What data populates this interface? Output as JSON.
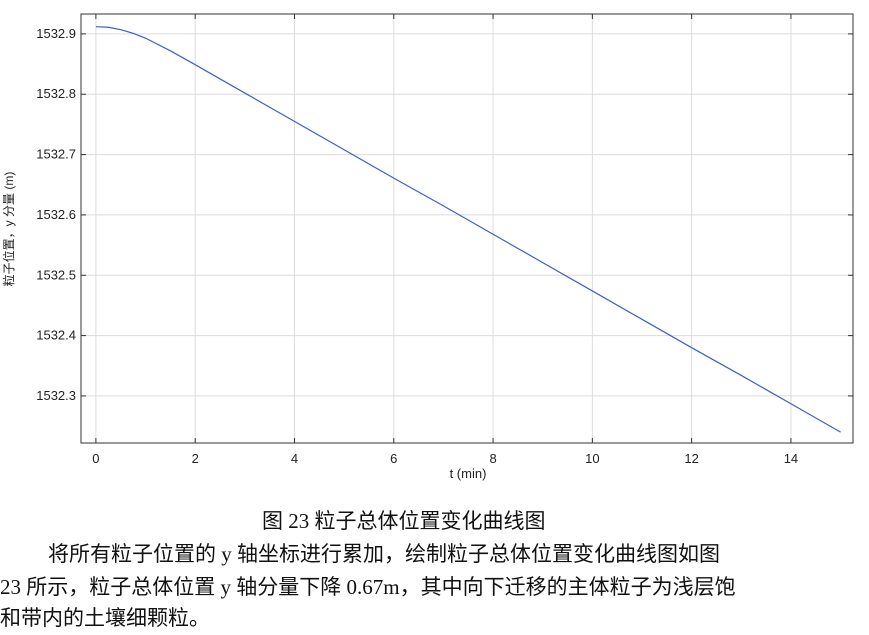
{
  "chart_data": {
    "type": "line",
    "xlabel": "t (min)",
    "ylabel": "粒子位置，y 分量 (m)",
    "x": [
      0,
      0.25,
      0.5,
      0.75,
      1,
      1.5,
      2,
      3,
      4,
      5,
      6,
      7,
      8,
      9,
      10,
      11,
      12,
      13,
      14,
      15
    ],
    "series": [
      {
        "color": "#3b5fd0",
        "values": [
          1532.912,
          1532.911,
          1532.907,
          1532.901,
          1532.893,
          1532.872,
          1532.849,
          1532.802,
          1532.755,
          1532.708,
          1532.661,
          1532.615,
          1532.568,
          1532.521,
          1532.474,
          1532.427,
          1532.38,
          1532.334,
          1532.287,
          1532.24
        ]
      }
    ],
    "xlim": [
      -0.3,
      15.25
    ],
    "ylim": [
      1532.222,
      1532.933
    ],
    "xticks": [
      0,
      2,
      4,
      6,
      8,
      10,
      12,
      14
    ],
    "yticks": [
      1532.3,
      1532.4,
      1532.5,
      1532.6,
      1532.7,
      1532.8,
      1532.9
    ],
    "grid": true
  },
  "caption": "图 23 粒子总体位置变化曲线图",
  "paragraph": [
    "将所有粒子位置的 y 轴坐标进行累加，绘制粒子总体位置变化曲线图如图",
    "23 所示，粒子总体位置 y 轴分量下降 0.67m，其中向下迁移的主体粒子为浅层饱",
    "和带内的土壤细颗粒。"
  ]
}
